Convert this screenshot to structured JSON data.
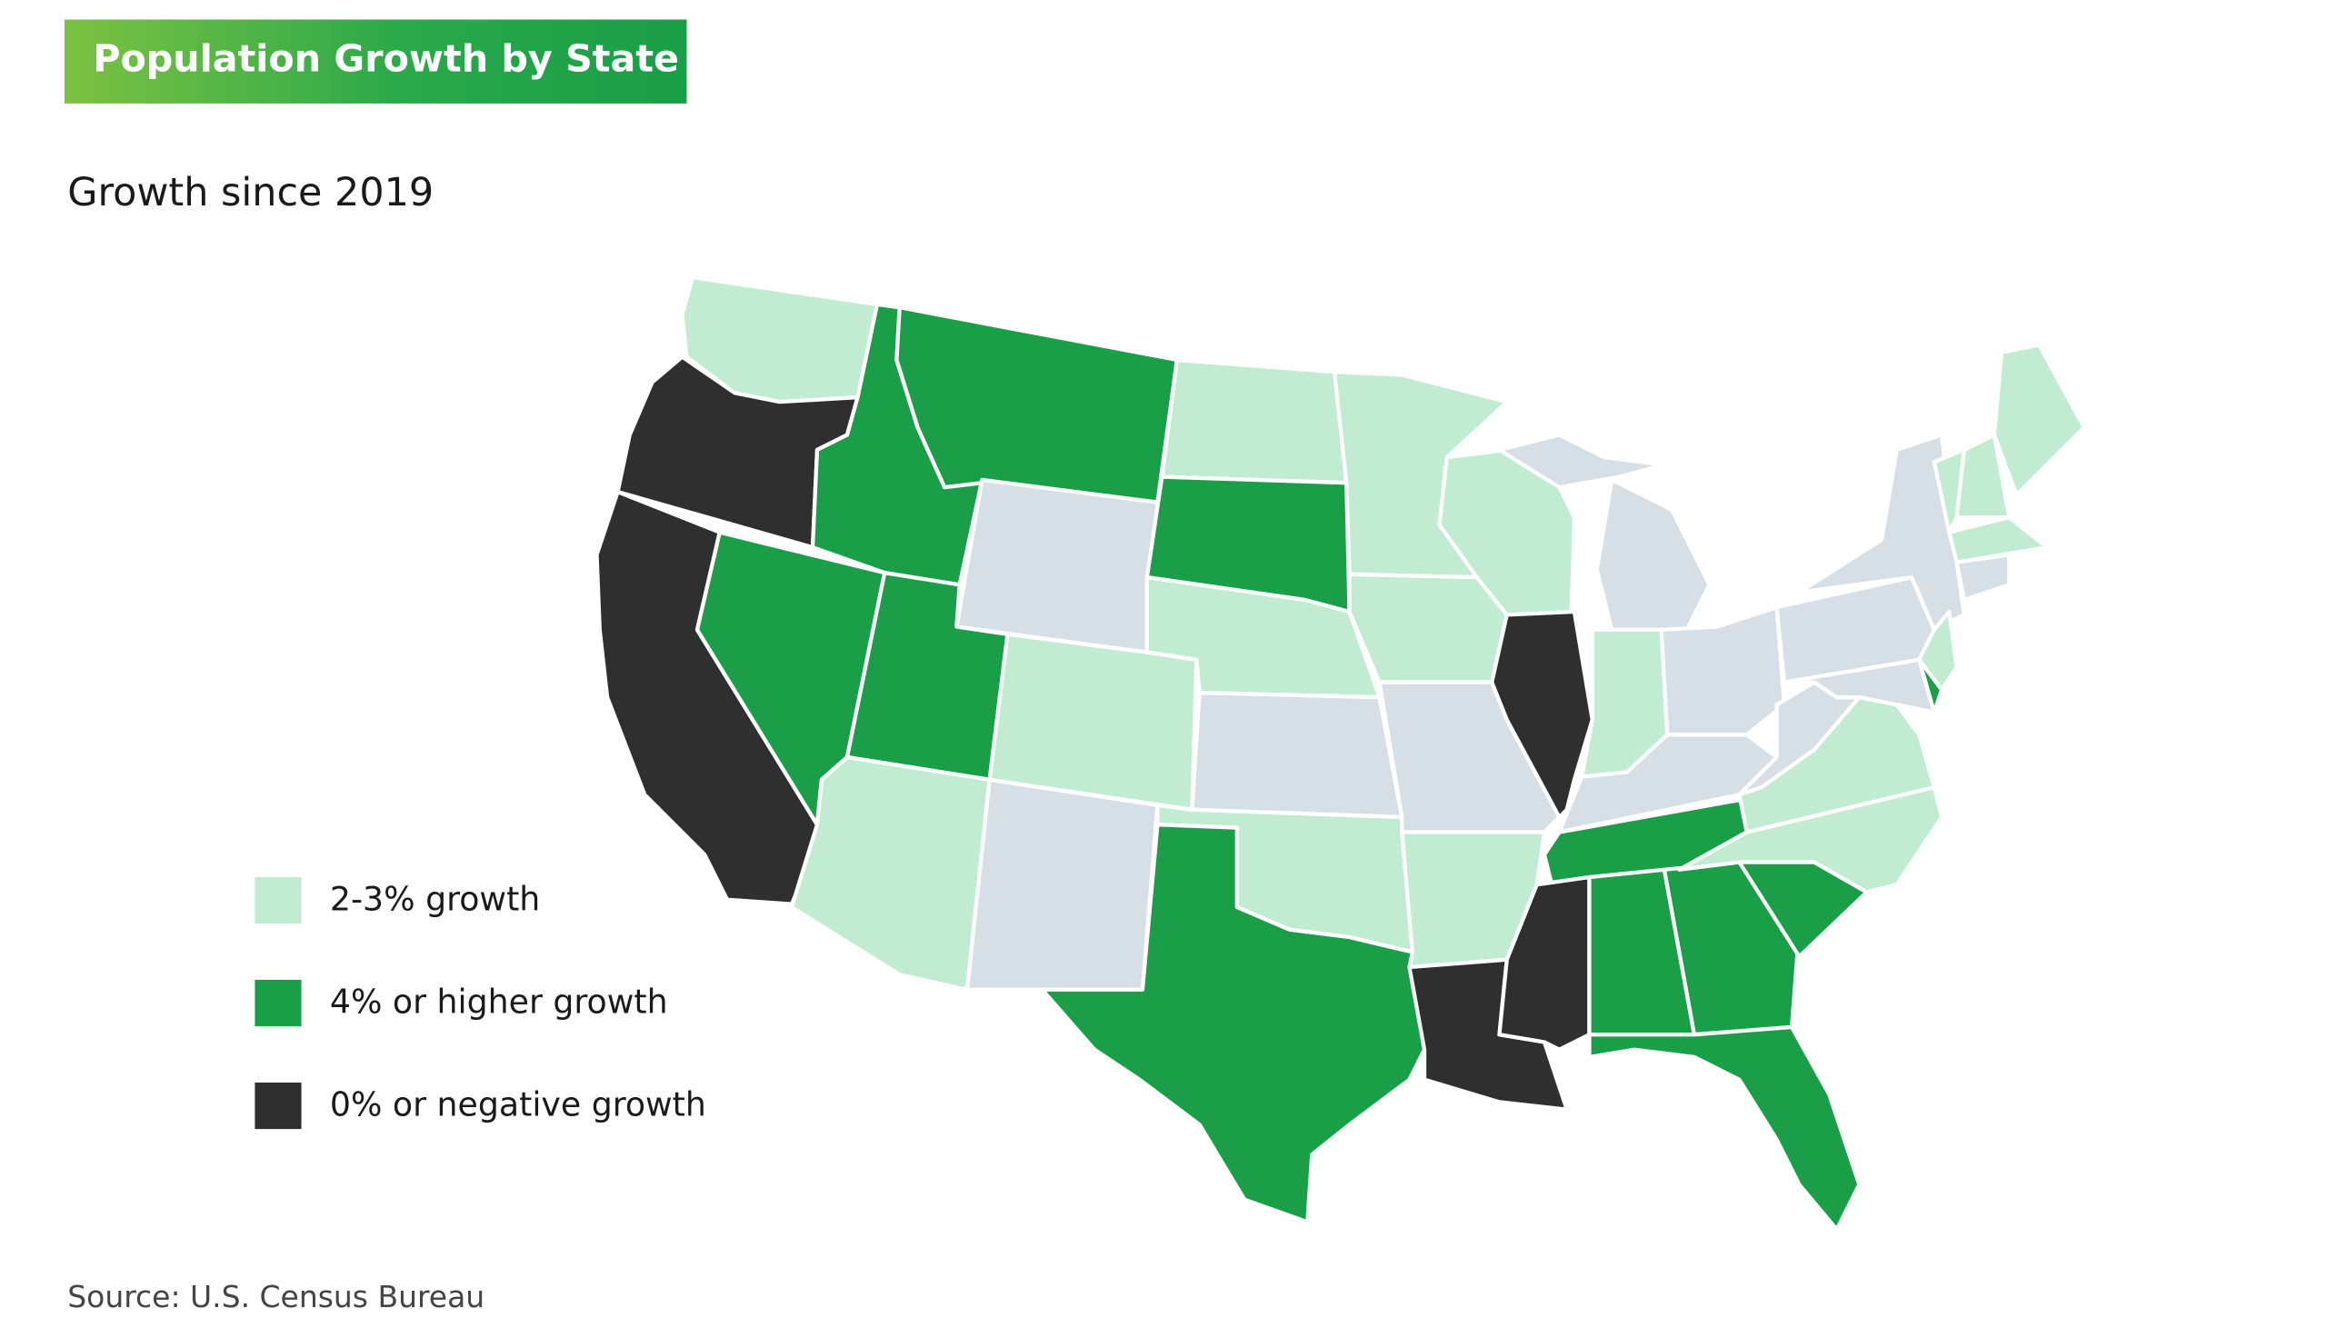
{
  "header": {
    "title": "Population Growth by State",
    "subtitle": "Growth since 2019"
  },
  "legend": {
    "items": [
      {
        "label": "2-3% growth",
        "color": "#c1ecd1"
      },
      {
        "label": "4% or higher growth",
        "color": "#1a9e48"
      },
      {
        "label": "0% or negative growth",
        "color": "#2f2f2f"
      }
    ]
  },
  "source": "Source: U.S. Census Bureau"
}
